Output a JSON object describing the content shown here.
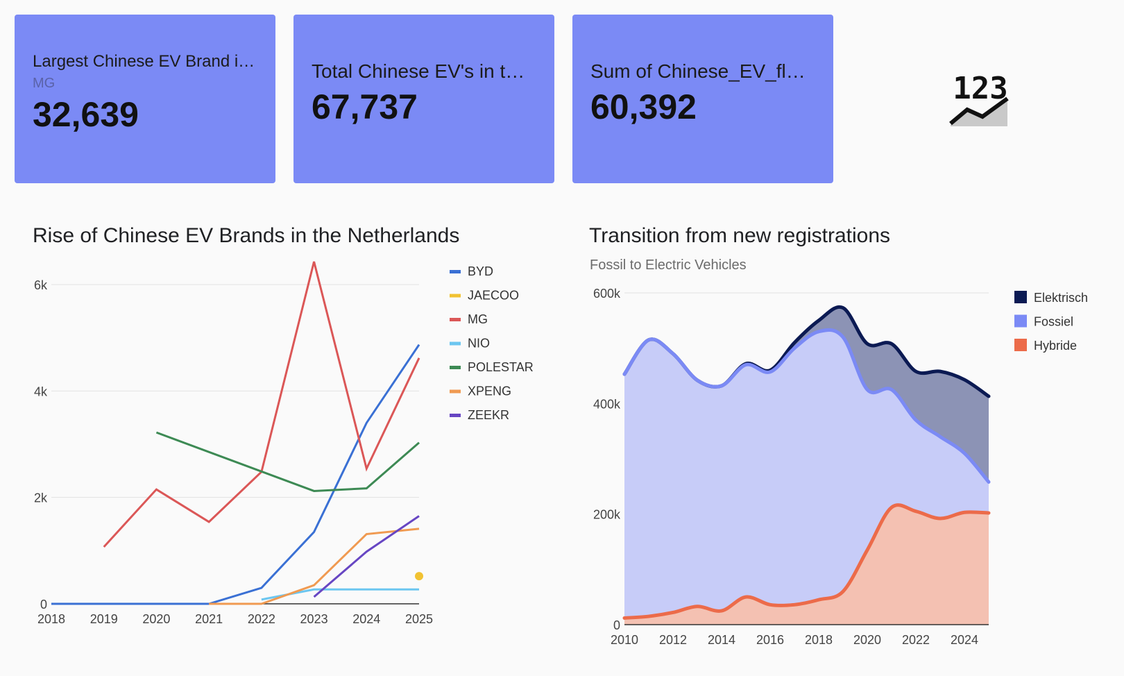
{
  "cards": [
    {
      "title": "Largest Chinese EV Brand in …",
      "subtitle": "MG",
      "value": "32,639"
    },
    {
      "title": "Total Chinese EV's in t…",
      "value": "67,737"
    },
    {
      "title": "Sum of Chinese_EV_fl…",
      "value": "60,392"
    }
  ],
  "scorecard_icon": "123-trend-icon",
  "icon_label": "123",
  "chart_data": [
    {
      "type": "line",
      "title": "Rise of Chinese EV Brands in the Netherlands",
      "xlabel": "",
      "ylabel": "",
      "x": [
        2018,
        2019,
        2020,
        2021,
        2022,
        2023,
        2024,
        2025
      ],
      "ylim": [
        0,
        6000
      ],
      "yticks": [
        0,
        2000,
        4000,
        6000
      ],
      "ytick_labels": [
        "0",
        "2k",
        "4k",
        "6k"
      ],
      "legend_position": "right",
      "grid": true,
      "series": [
        {
          "name": "BYD",
          "color": "#3a70d4",
          "values": [
            0,
            0,
            0,
            0,
            300,
            1350,
            3400,
            4870
          ]
        },
        {
          "name": "JAECOO",
          "color": "#f1c232",
          "values": [
            null,
            null,
            null,
            null,
            null,
            null,
            null,
            520
          ]
        },
        {
          "name": "MG",
          "color": "#db5757",
          "values": [
            null,
            1070,
            2150,
            1540,
            2480,
            6430,
            2540,
            4620
          ]
        },
        {
          "name": "NIO",
          "color": "#6cc6f0",
          "values": [
            null,
            null,
            null,
            null,
            80,
            270,
            270,
            270
          ]
        },
        {
          "name": "POLESTAR",
          "color": "#3d8a54",
          "values": [
            null,
            null,
            3220,
            null,
            null,
            2120,
            2170,
            3030
          ]
        },
        {
          "name": "XPENG",
          "color": "#f09a51",
          "values": [
            null,
            null,
            null,
            0,
            0,
            350,
            1310,
            1410
          ]
        },
        {
          "name": "ZEEKR",
          "color": "#6746c3",
          "values": [
            null,
            null,
            null,
            null,
            null,
            130,
            980,
            1650
          ]
        }
      ]
    },
    {
      "type": "area",
      "title": "Transition from new registrations",
      "subtitle": "Fossil to Electric Vehicles",
      "xlabel": "",
      "ylabel": "",
      "x": [
        2010,
        2011,
        2012,
        2013,
        2014,
        2015,
        2016,
        2017,
        2018,
        2019,
        2020,
        2021,
        2022,
        2023,
        2024,
        2025
      ],
      "xticks": [
        2010,
        2012,
        2014,
        2016,
        2018,
        2020,
        2022,
        2024
      ],
      "ylim": [
        0,
        600000
      ],
      "yticks": [
        0,
        200000,
        400000,
        600000
      ],
      "ytick_labels": [
        "0",
        "200k",
        "400k",
        "600k"
      ],
      "legend_position": "right",
      "grid": true,
      "series": [
        {
          "name": "Elektrisch",
          "color": "#0b1a53",
          "area_color": "#8c93b5",
          "values": [
            453000,
            515000,
            490000,
            442000,
            432000,
            472000,
            460000,
            510000,
            550000,
            573000,
            508000,
            508000,
            458000,
            458000,
            443000,
            413000
          ]
        },
        {
          "name": "Fossiel",
          "color": "#7b8af5",
          "area_color": "#c7ccf8",
          "values": [
            453000,
            515000,
            490000,
            442000,
            432000,
            470000,
            457000,
            500000,
            530000,
            520000,
            425000,
            425000,
            370000,
            340000,
            310000,
            258000
          ]
        },
        {
          "name": "Hybride",
          "color": "#ec6b4a",
          "area_color": "#f4c1b2",
          "values": [
            12000,
            15000,
            22000,
            33000,
            25000,
            50000,
            36000,
            36000,
            45000,
            60000,
            135000,
            212000,
            205000,
            192000,
            203000,
            202000
          ]
        }
      ]
    }
  ]
}
